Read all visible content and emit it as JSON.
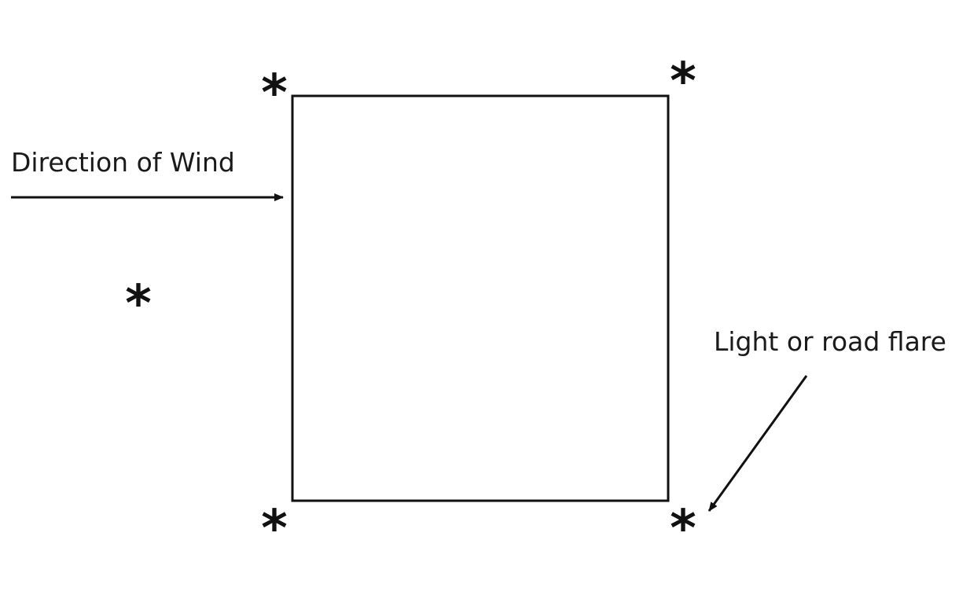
{
  "labels": {
    "wind": "Direction of Wind",
    "flare": "Light or road flare"
  },
  "marker_symbol": "*",
  "colors": {
    "ink": "#111111",
    "background": "#ffffff"
  }
}
